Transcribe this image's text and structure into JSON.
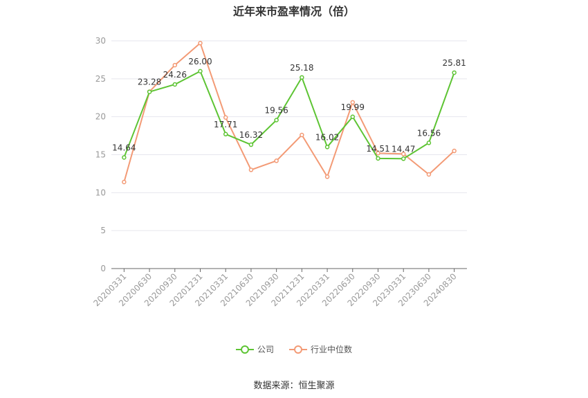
{
  "chart_data": {
    "type": "line",
    "title": "近年来市盈率情况（倍）",
    "categories": [
      "20200331",
      "20200630",
      "20200930",
      "20201231",
      "20210331",
      "20210630",
      "20210930",
      "20211231",
      "20220331",
      "20220630",
      "20220930",
      "20230331",
      "20230630",
      "20240830"
    ],
    "series": [
      {
        "name": "公司",
        "color": "#5dc433",
        "values": [
          14.64,
          23.28,
          24.26,
          26.0,
          17.71,
          16.32,
          19.56,
          25.18,
          16.02,
          19.99,
          14.51,
          14.47,
          16.56,
          25.81
        ],
        "show_labels": true
      },
      {
        "name": "行业中位数",
        "color": "#f39a75",
        "values": [
          11.4,
          23.3,
          26.8,
          29.7,
          19.9,
          13.0,
          14.2,
          17.6,
          12.1,
          21.9,
          15.2,
          15.1,
          12.4,
          15.5
        ],
        "show_labels": false
      }
    ],
    "ylim": [
      0,
      30
    ],
    "yticks": [
      0,
      5,
      10,
      15,
      20,
      25,
      30
    ],
    "grid": true,
    "legend": "bottom",
    "xlabel": "",
    "ylabel": ""
  },
  "legend": {
    "company": "公司",
    "industry": "行业中位数"
  },
  "source": "数据来源：恒生聚源"
}
